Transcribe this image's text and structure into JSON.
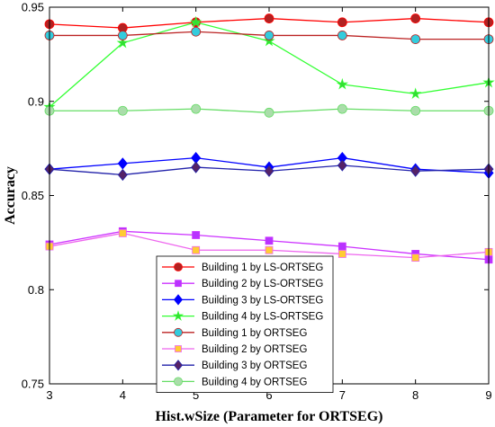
{
  "chart_data": {
    "type": "line",
    "title": "",
    "xlabel": "Hist.wSize (Parameter for ORTSEG)",
    "ylabel": "Accuracy",
    "xlim": [
      3,
      9
    ],
    "ylim": [
      0.75,
      0.95
    ],
    "xticks": [
      3,
      4,
      5,
      6,
      7,
      8,
      9
    ],
    "yticks": [
      0.75,
      0.8,
      0.85,
      0.9,
      0.95
    ],
    "ytick_labels": [
      "0.75",
      "0.8",
      "0.85",
      "0.9",
      "0.95"
    ],
    "grid": false,
    "legend_position": "bottom-center",
    "x": [
      3,
      4,
      5,
      6,
      7,
      8,
      9
    ],
    "series": [
      {
        "name": "Building 1 by LS-ORTSEG",
        "color": "#ff0000",
        "marker": "circle",
        "marker_fill": "#b22222",
        "values": [
          0.941,
          0.939,
          0.942,
          0.944,
          0.942,
          0.944,
          0.942
        ]
      },
      {
        "name": "Building 2 by LS-ORTSEG",
        "color": "#cc33ff",
        "marker": "square",
        "marker_fill": "#b833ff",
        "values": [
          0.824,
          0.831,
          0.829,
          0.826,
          0.823,
          0.819,
          0.816
        ]
      },
      {
        "name": "Building 3 by LS-ORTSEG",
        "color": "#0000ff",
        "marker": "diamond",
        "marker_fill": "#0000ff",
        "values": [
          0.864,
          0.867,
          0.87,
          0.865,
          0.87,
          0.864,
          0.862
        ]
      },
      {
        "name": "Building 4 by LS-ORTSEG",
        "color": "#33ff33",
        "marker": "star",
        "marker_fill": "#33dd33",
        "values": [
          0.897,
          0.931,
          0.942,
          0.932,
          0.909,
          0.904,
          0.91
        ]
      },
      {
        "name": "Building 1 by ORTSEG",
        "color": "#bb2222",
        "marker": "circle",
        "marker_fill": "#33ccdd",
        "values": [
          0.935,
          0.935,
          0.937,
          0.935,
          0.935,
          0.933,
          0.933
        ]
      },
      {
        "name": "Building 2 by ORTSEG",
        "color": "#ee66ee",
        "marker": "square",
        "marker_fill": "#ffcc33",
        "values": [
          0.823,
          0.83,
          0.821,
          0.821,
          0.819,
          0.817,
          0.82
        ]
      },
      {
        "name": "Building 3 by ORTSEG",
        "color": "#2222aa",
        "marker": "diamond",
        "marker_fill": "#552266",
        "values": [
          0.864,
          0.861,
          0.865,
          0.863,
          0.866,
          0.863,
          0.864
        ]
      },
      {
        "name": "Building 4 by ORTSEG",
        "color": "#66dd66",
        "marker": "circle",
        "marker_fill": "#aaddaa",
        "values": [
          0.895,
          0.895,
          0.896,
          0.894,
          0.896,
          0.895,
          0.895
        ]
      }
    ]
  }
}
